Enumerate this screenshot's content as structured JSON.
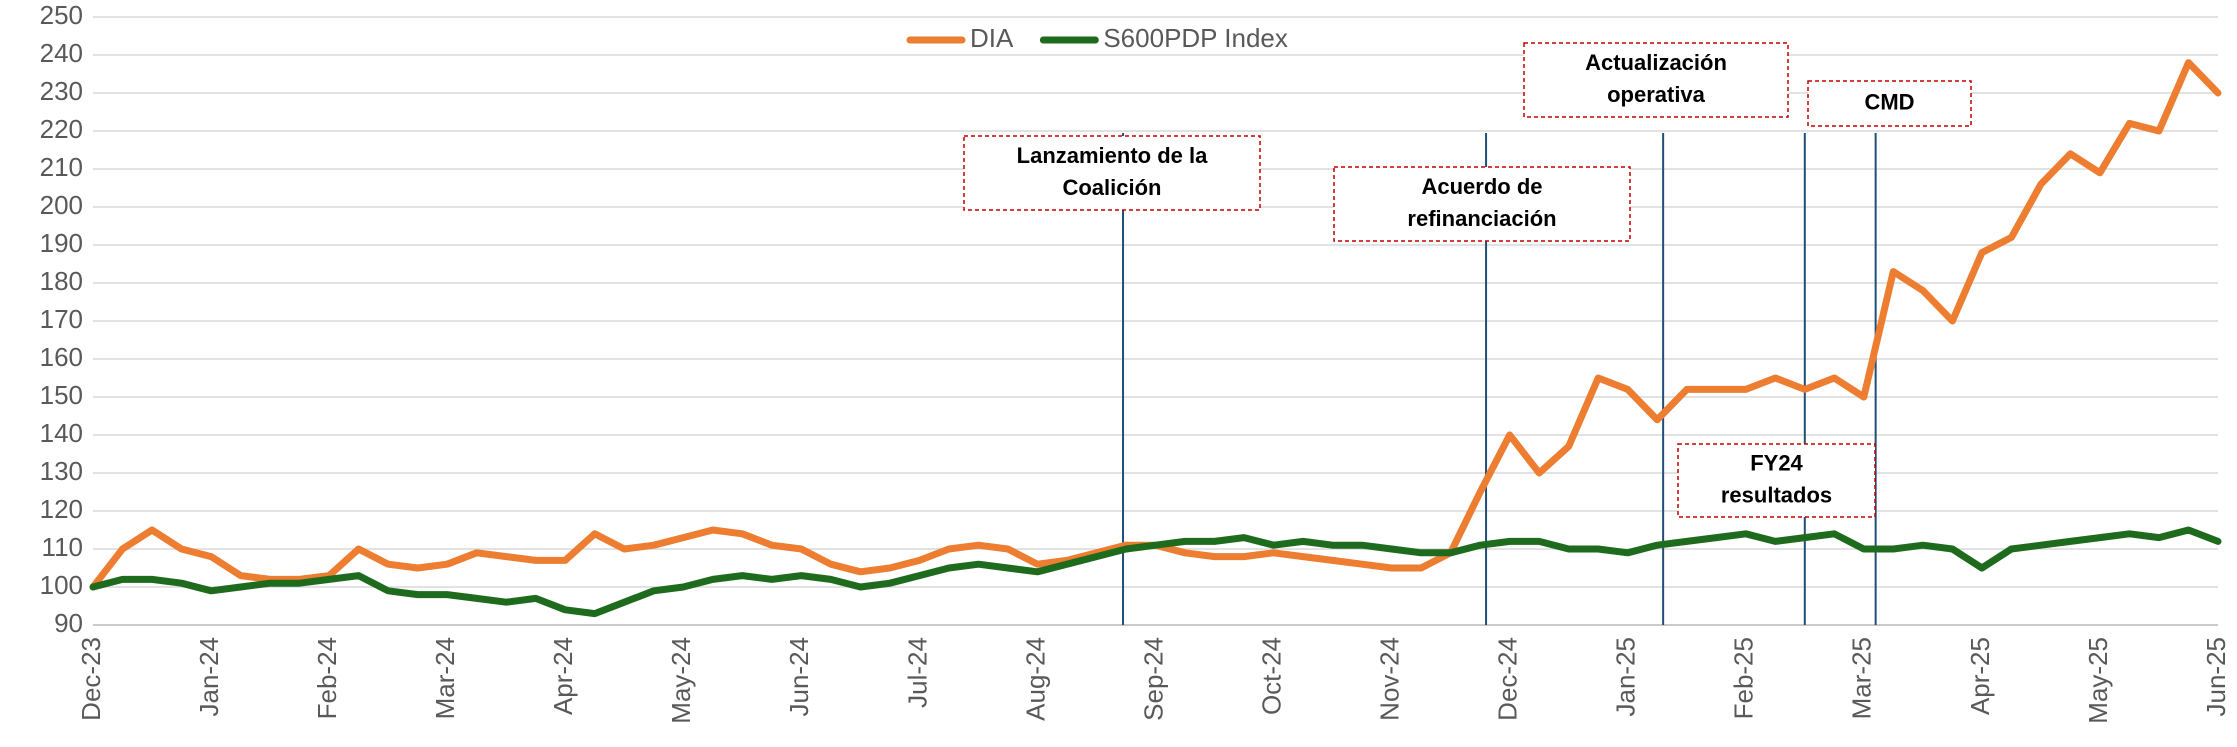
{
  "chart_data": {
    "type": "line",
    "categories": [
      "Dec-23",
      null,
      null,
      null,
      "Jan-24",
      null,
      null,
      null,
      "Feb-24",
      null,
      null,
      null,
      "Mar-24",
      null,
      null,
      null,
      "Apr-24",
      null,
      null,
      null,
      "May-24",
      null,
      null,
      null,
      "Jun-24",
      null,
      null,
      null,
      "Jul-24",
      null,
      null,
      null,
      "Aug-24",
      null,
      null,
      null,
      "Sep-24",
      null,
      null,
      null,
      "Oct-24",
      null,
      null,
      null,
      "Nov-24",
      null,
      null,
      null,
      "Dec-24",
      null,
      null,
      null,
      "Jan-25",
      null,
      null,
      null,
      "Feb-25",
      null,
      null,
      null,
      "Mar-25",
      null,
      null,
      null,
      "Apr-25",
      null,
      null,
      null,
      "May-25",
      null,
      null,
      null,
      "Jun-25"
    ],
    "series": [
      {
        "name": "DIA",
        "color": "#ED7D31",
        "values": [
          100,
          110,
          115,
          110,
          108,
          103,
          102,
          102,
          103,
          110,
          106,
          105,
          106,
          109,
          108,
          107,
          107,
          114,
          110,
          111,
          113,
          115,
          114,
          111,
          110,
          106,
          104,
          105,
          107,
          110,
          111,
          110,
          106,
          107,
          109,
          111,
          111,
          109,
          108,
          108,
          109,
          108,
          107,
          106,
          105,
          105,
          109,
          125,
          140,
          130,
          137,
          155,
          152,
          144,
          152,
          152,
          152,
          155,
          152,
          155,
          150,
          183,
          178,
          170,
          188,
          192,
          206,
          214,
          209,
          222,
          220,
          238,
          230
        ]
      },
      {
        "name": "S600PDP Index",
        "color": "#1E6B1E",
        "values": [
          100,
          102,
          102,
          101,
          99,
          100,
          101,
          101,
          102,
          103,
          99,
          98,
          98,
          97,
          96,
          97,
          94,
          93,
          96,
          99,
          100,
          102,
          103,
          102,
          103,
          102,
          100,
          101,
          103,
          105,
          106,
          105,
          104,
          106,
          108,
          110,
          111,
          112,
          112,
          113,
          111,
          112,
          111,
          111,
          110,
          109,
          109,
          111,
          112,
          112,
          110,
          110,
          109,
          111,
          112,
          113,
          114,
          112,
          113,
          114,
          110,
          110,
          111,
          110,
          105,
          110,
          111,
          112,
          113,
          114,
          113,
          115,
          112
        ]
      }
    ],
    "ylim": [
      90,
      250
    ],
    "yticks": [
      90,
      100,
      110,
      120,
      130,
      140,
      150,
      160,
      170,
      180,
      190,
      200,
      210,
      220,
      230,
      240,
      250
    ],
    "grid": true,
    "legend": "top",
    "annotations": [
      {
        "text": [
          "Lanzamiento de la",
          "Coalición"
        ],
        "x": 34.9
      },
      {
        "text": [
          "Acuerdo de",
          "refinanciación"
        ],
        "x": 47.2
      },
      {
        "text": [
          "Actualización",
          "operativa"
        ],
        "x": 53.2
      },
      {
        "text": [
          "FY24",
          "resultados"
        ],
        "x": 58
      },
      {
        "text": [
          "CMD"
        ],
        "x": 60.4
      }
    ]
  }
}
